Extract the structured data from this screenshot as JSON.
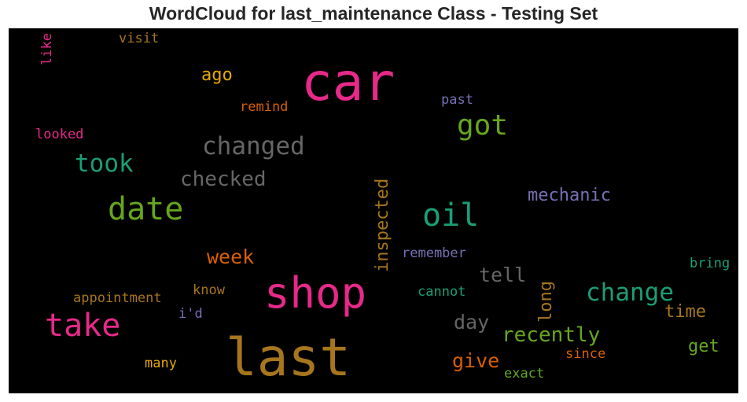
{
  "chart_data": {
    "type": "wordcloud",
    "title": "WordCloud for last_maintenance Class - Testing Set",
    "background": "#000000",
    "words": [
      {
        "text": "car",
        "color": "#e7298a"
      },
      {
        "text": "last",
        "color": "#a6761d"
      },
      {
        "text": "shop",
        "color": "#e7298a"
      },
      {
        "text": "oil",
        "color": "#1b9e77"
      },
      {
        "text": "date",
        "color": "#66a61e"
      },
      {
        "text": "take",
        "color": "#e7298a"
      },
      {
        "text": "got",
        "color": "#66a61e"
      },
      {
        "text": "changed",
        "color": "#666666"
      },
      {
        "text": "took",
        "color": "#1b9e77"
      },
      {
        "text": "change",
        "color": "#1b9e77"
      },
      {
        "text": "checked",
        "color": "#666666"
      },
      {
        "text": "recently",
        "color": "#66a61e"
      },
      {
        "text": "week",
        "color": "#d95f02"
      },
      {
        "text": "mechanic",
        "color": "#7570b3"
      },
      {
        "text": "inspected",
        "color": "#a6761d"
      },
      {
        "text": "tell",
        "color": "#666666"
      },
      {
        "text": "day",
        "color": "#666666"
      },
      {
        "text": "give",
        "color": "#d95f02"
      },
      {
        "text": "ago",
        "color": "#e6ab02"
      },
      {
        "text": "long",
        "color": "#a6761d"
      },
      {
        "text": "time",
        "color": "#a6761d"
      },
      {
        "text": "get",
        "color": "#66a61e"
      },
      {
        "text": "remind",
        "color": "#d95f02"
      },
      {
        "text": "past",
        "color": "#7570b3"
      },
      {
        "text": "looked",
        "color": "#e7298a"
      },
      {
        "text": "visit",
        "color": "#a6761d"
      },
      {
        "text": "like",
        "color": "#e7298a"
      },
      {
        "text": "remember",
        "color": "#7570b3"
      },
      {
        "text": "bring",
        "color": "#1b9e77"
      },
      {
        "text": "appointment",
        "color": "#a6761d"
      },
      {
        "text": "know",
        "color": "#a6761d"
      },
      {
        "text": "cannot",
        "color": "#1b9e77"
      },
      {
        "text": "i'd",
        "color": "#7570b3"
      },
      {
        "text": "many",
        "color": "#e6ab02"
      },
      {
        "text": "since",
        "color": "#d95f02"
      },
      {
        "text": "exact",
        "color": "#66a61e"
      }
    ]
  }
}
